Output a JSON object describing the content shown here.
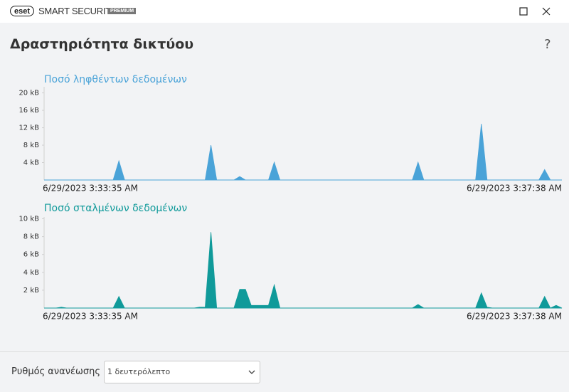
{
  "window": {
    "brand": "eset",
    "product": "SMART SECURITY",
    "edition": "PREMIUM"
  },
  "header": {
    "title": "Δραστηριότητα δικτύου",
    "help": "?"
  },
  "chart_data": [
    {
      "type": "area",
      "title": "Ποσό ληφθέντων δεδομένων",
      "color": "#4aa3d8",
      "grid": false,
      "ylim": [
        0,
        21.4
      ],
      "yticks": [
        {
          "value": 4,
          "label": "4 kB"
        },
        {
          "value": 8,
          "label": "8 kB"
        },
        {
          "value": 12,
          "label": "12 kB"
        },
        {
          "value": 16,
          "label": "16 kB"
        },
        {
          "value": 20,
          "label": "20 kB"
        }
      ],
      "categories": [
        "6/29/2023 3:33:35 AM",
        null,
        null,
        null,
        null,
        null,
        null,
        null,
        null,
        null,
        null,
        null,
        null,
        null,
        null,
        null,
        null,
        null,
        null,
        null,
        null,
        null,
        null,
        null,
        null,
        null,
        null,
        null,
        null,
        null,
        null,
        null,
        null,
        null,
        null,
        null,
        null,
        null,
        null,
        null,
        null,
        null,
        null,
        null,
        null,
        null,
        null,
        null,
        null,
        null,
        null,
        null,
        null,
        null,
        null,
        null,
        null,
        null,
        null,
        null,
        null,
        null,
        null,
        null,
        null,
        null,
        null,
        null,
        null,
        null,
        null,
        null,
        null,
        null,
        null,
        null,
        null,
        null,
        null,
        null,
        null,
        null,
        null,
        null,
        null,
        null,
        null,
        null,
        null,
        null,
        "6/29/2023 3:37:38 AM"
      ],
      "values": [
        0,
        0,
        0,
        0,
        0,
        0,
        0,
        0,
        0,
        0,
        0,
        0,
        0,
        4.4,
        0,
        0,
        0,
        0,
        0,
        0,
        0,
        0,
        0,
        0,
        0,
        0,
        0,
        0,
        0,
        8,
        0,
        0,
        0,
        0,
        0.8,
        0,
        0,
        0,
        0,
        0,
        4.1,
        0,
        0,
        0,
        0,
        0,
        0,
        0,
        0,
        0,
        0,
        0,
        0,
        0,
        0,
        0,
        0,
        0,
        0,
        0,
        0,
        0,
        0,
        0,
        0,
        4.1,
        0,
        0,
        0,
        0,
        0,
        0,
        0,
        0,
        0,
        0,
        12.9,
        0,
        0,
        0,
        0,
        0,
        0,
        0,
        0,
        0,
        0,
        2.4,
        0,
        0,
        0
      ]
    },
    {
      "type": "area",
      "title": "Ποσό σταλμένων δεδομένων",
      "color": "#109a9a",
      "grid": false,
      "ylim": [
        0,
        10.2
      ],
      "yticks": [
        {
          "value": 2,
          "label": "2 kB"
        },
        {
          "value": 4,
          "label": "4 kB"
        },
        {
          "value": 6,
          "label": "6 kB"
        },
        {
          "value": 8,
          "label": "8 kB"
        },
        {
          "value": 10,
          "label": "10 kB"
        }
      ],
      "categories": [
        "6/29/2023 3:33:35 AM",
        null,
        null,
        null,
        null,
        null,
        null,
        null,
        null,
        null,
        null,
        null,
        null,
        null,
        null,
        null,
        null,
        null,
        null,
        null,
        null,
        null,
        null,
        null,
        null,
        null,
        null,
        null,
        null,
        null,
        null,
        null,
        null,
        null,
        null,
        null,
        null,
        null,
        null,
        null,
        null,
        null,
        null,
        null,
        null,
        null,
        null,
        null,
        null,
        null,
        null,
        null,
        null,
        null,
        null,
        null,
        null,
        null,
        null,
        null,
        null,
        null,
        null,
        null,
        null,
        null,
        null,
        null,
        null,
        null,
        null,
        null,
        null,
        null,
        null,
        null,
        null,
        null,
        null,
        null,
        null,
        null,
        null,
        null,
        null,
        null,
        null,
        null,
        null,
        null,
        "6/29/2023 3:37:38 AM"
      ],
      "values": [
        0,
        0,
        0,
        0.1,
        0,
        0,
        0,
        0,
        0,
        0,
        0,
        0,
        0,
        1.3,
        0,
        0,
        0,
        0,
        0,
        0,
        0,
        0,
        0,
        0,
        0,
        0,
        0,
        0.1,
        0.1,
        8.5,
        0,
        0,
        0,
        0,
        2.1,
        2.1,
        0.3,
        0.3,
        0.3,
        0.3,
        2.6,
        0,
        0,
        0,
        0,
        0,
        0,
        0,
        0,
        0,
        0,
        0,
        0,
        0,
        0,
        0,
        0,
        0,
        0,
        0,
        0,
        0,
        0,
        0,
        0,
        0.4,
        0,
        0,
        0,
        0,
        0,
        0,
        0,
        0,
        0,
        0,
        1.7,
        0.1,
        0,
        0,
        0,
        0,
        0,
        0,
        0,
        0,
        0,
        1.3,
        0,
        0.3,
        0
      ]
    }
  ],
  "footer": {
    "label": "Ρυθμός ανανέωσης",
    "select_value": "1 δευτερόλεπτο"
  }
}
